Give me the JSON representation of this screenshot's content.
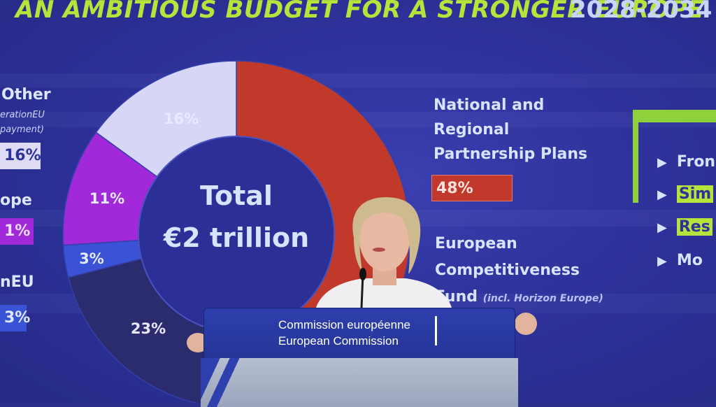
{
  "slide": {
    "title": "AN AMBITIOUS BUDGET FOR A STRONGER EUROPE",
    "years": "2028-2034",
    "total_line1": "Total",
    "total_line2": "€2 trillion",
    "slice_labels": [
      "16%",
      "11%",
      "3%",
      "23%"
    ],
    "left_legend": {
      "other": "Other",
      "other_sub1": "erationEU",
      "other_sub2": "payment)",
      "other_pct": "16%",
      "europe": "ope",
      "europe_pct": "1%",
      "eu": "nEU",
      "eu_pct": "3%"
    },
    "npp_lines": [
      "National and",
      "Regional",
      "Partnership Plans"
    ],
    "npp_pct": "48%",
    "ecf_lines": [
      "European",
      "Competitiveness",
      "Fund"
    ],
    "ecf_incl": "(incl. Horizon Europe)",
    "right_items": [
      "Fron",
      "Sim",
      "Res",
      "Mo"
    ],
    "colors": {
      "title": "#b8e33a",
      "red_slice": "#c0392b",
      "lavender_slice": "#d7d6f7",
      "magenta_slice": "#a129d9",
      "blue_slice": "#3a52d6",
      "dark_slice": "#2a2c6e",
      "podium": "#2e3fae"
    }
  },
  "podium": {
    "line1": "Commission européenne",
    "line2": "European Commission"
  }
}
